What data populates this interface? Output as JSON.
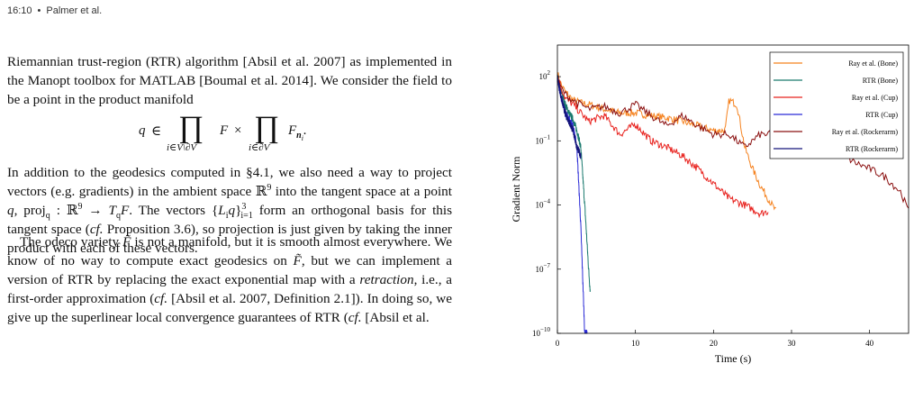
{
  "header": {
    "page_ref": "16:10",
    "separator": "•",
    "authors": "Palmer et al."
  },
  "para1": {
    "text": "Riemannian trust-region (RTR) algorithm [Absil et al. 2007] as implemented in the Manopt toolbox for MATLAB [Boumal et al. 2014]. We consider the field to be a point in the product manifold"
  },
  "equation": {
    "lhs": "q",
    "in": "∈",
    "prod": "∏",
    "sub1": "i∈V\\∂V",
    "factor1": "F",
    "times": "×",
    "sub2": "i∈∂V",
    "factor2": "F",
    "factor2_sub": "n",
    "factor2_subsub": "i",
    "end": "."
  },
  "para2": {
    "s1": "In addition to the geodesics computed in §4.1, we also need a way to project vectors (e.g. gradients) in the ambient space ℝ",
    "s1_sup": "9",
    "s2": " into the tangent space at a point ",
    "q": "q",
    "s3": ", proj",
    "proj_sub": "q",
    "s4": " : ℝ",
    "s4_sup": "9",
    "s5": " → ",
    "TqF": "T",
    "TqF_sub": "q",
    "TqF_F": "F",
    "s6": ". The vectors {",
    "Liq": "L",
    "Liq_sub": "i",
    "Liq_q": "q",
    "s7": "}",
    "set_sup": "3",
    "set_sub": "i=1",
    "s8": " form an orthogonal basis for this tangent space (",
    "cf": "cf.",
    "s9": " Proposition 3.6), so projection is just given by taking the inner product with each of these vectors."
  },
  "para3": {
    "s1": "The odeco variety ",
    "Ftilde": "F̃",
    "s2": " is not a manifold, but it is smooth almost everywhere. We know of no way to compute exact geodesics on ",
    "s3": ", but we can implement a version of RTR by replacing the exact exponential map with a ",
    "retraction": "retraction",
    "s4": ", i.e., a first-order approximation (",
    "cf": "cf.",
    "s5": " [Absil et al. 2007, Definition 2.1]). In doing so, we give up the superlinear local convergence guarantees of RTR (",
    "s6": " [Absil et al."
  },
  "chart_data": {
    "type": "line",
    "xlabel": "Time (s)",
    "ylabel": "Gradient Norm",
    "xlim": [
      0,
      45
    ],
    "ylim": [
      1e-10,
      3000
    ],
    "yscale": "log",
    "xticks": [
      "0",
      "10",
      "20",
      "30",
      "40"
    ],
    "yticks": [
      {
        "base": "10",
        "exp": "2"
      },
      {
        "base": "10",
        "exp": "−1"
      },
      {
        "base": "10",
        "exp": "−4"
      },
      {
        "base": "10",
        "exp": "−7"
      },
      {
        "base": "10",
        "exp": "−10"
      }
    ],
    "legend_position": "top-right",
    "series": [
      {
        "name": "Ray et al. (Bone)",
        "color": "#f5821f",
        "x": [
          0,
          0.5,
          1,
          2,
          3,
          4,
          5,
          6,
          8,
          10,
          12,
          14,
          16,
          18,
          20,
          21.5,
          22,
          23,
          24,
          25,
          26,
          27,
          28
        ],
        "y": [
          150,
          40,
          20,
          8,
          6,
          5,
          4,
          3,
          2,
          2,
          1.5,
          1.2,
          0.8,
          0.5,
          0.3,
          0.3,
          8,
          5,
          0.05,
          0.005,
          0.0008,
          0.0002,
          5e-05
        ]
      },
      {
        "name": "RTR (Bone)",
        "color": "#1a7a6e",
        "x": [
          0,
          0.5,
          1,
          1.5,
          2,
          2.5,
          3,
          3.5,
          4,
          4.2
        ],
        "y": [
          100,
          20,
          5,
          2,
          1,
          0.3,
          0.05,
          0.0001,
          1e-07,
          1e-08
        ]
      },
      {
        "name": "Ray et al. (Cup)",
        "color": "#e8231f",
        "x": [
          0,
          0.5,
          1,
          2,
          3,
          4,
          6,
          8,
          10,
          12,
          14,
          16,
          18,
          20,
          22,
          24,
          26,
          27
        ],
        "y": [
          120,
          30,
          10,
          5,
          2,
          0.8,
          1.5,
          0.2,
          0.6,
          0.1,
          0.05,
          0.02,
          0.005,
          0.001,
          0.0002,
          0.0001,
          4e-05,
          5e-05
        ]
      },
      {
        "name": "RTR (Cup)",
        "color": "#2b2bd6",
        "x": [
          0,
          0.5,
          1,
          1.5,
          2,
          2.5,
          3,
          3.5,
          3.8
        ],
        "y": [
          80,
          10,
          2,
          1,
          0.5,
          0.05,
          1e-05,
          1e-10,
          1e-10
        ]
      },
      {
        "name": "Ray et al. (Rockerarm)",
        "color": "#8b1010",
        "x": [
          0,
          1,
          2,
          4,
          6,
          8,
          10,
          12,
          14,
          16,
          18,
          20,
          22,
          24,
          26,
          28,
          30,
          32,
          34,
          36,
          38,
          40,
          42,
          44,
          45
        ],
        "y": [
          60,
          15,
          8,
          3,
          4,
          2,
          5,
          1.5,
          0.5,
          1.5,
          0.5,
          0.2,
          0.2,
          0.05,
          0.2,
          0.2,
          0.06,
          0.06,
          0.03,
          0.03,
          0.01,
          0.005,
          0.002,
          0.0004,
          5e-05
        ]
      },
      {
        "name": "RTR (Rockerarm)",
        "color": "#14147a",
        "x": [
          0,
          0.5,
          1,
          1.5,
          2,
          2.5,
          3
        ],
        "y": [
          100,
          10,
          2,
          0.8,
          0.3,
          0.05,
          0.02
        ]
      }
    ]
  }
}
